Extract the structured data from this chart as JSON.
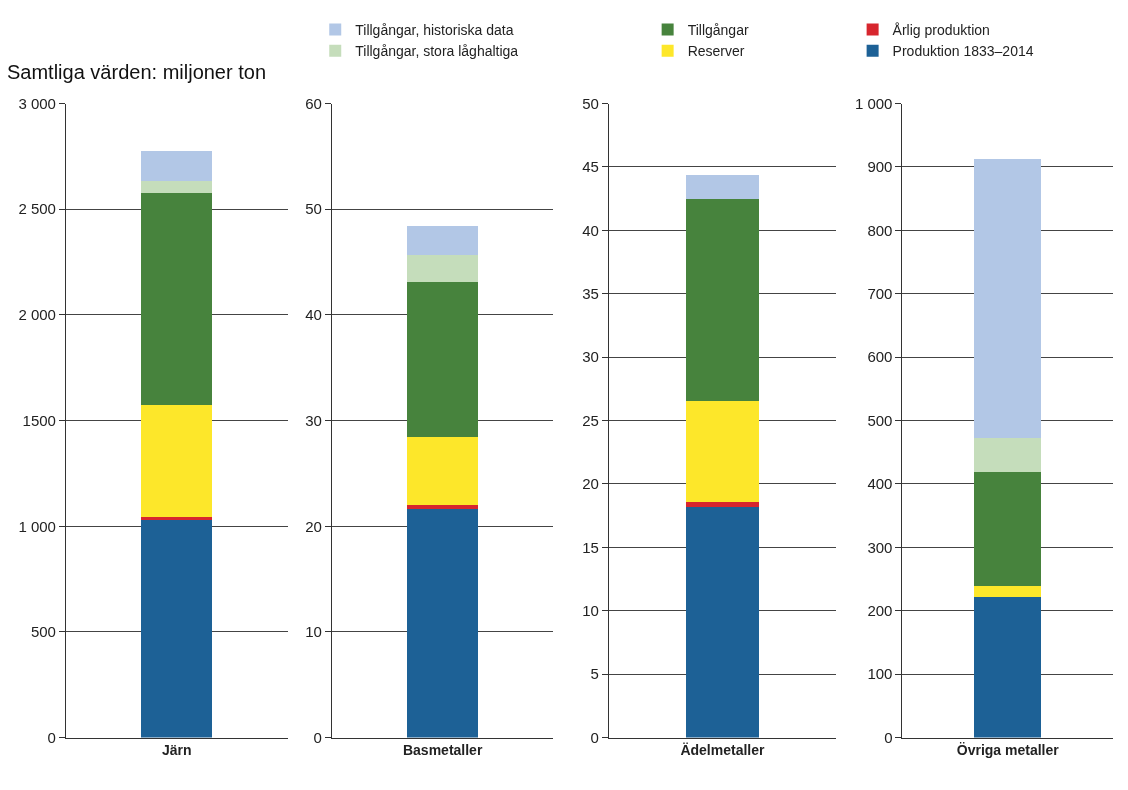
{
  "chart_data": [
    {
      "type": "bar",
      "title": "Samtliga värden: miljoner ton",
      "stacked": true,
      "legend": "top",
      "grid": "y",
      "categories": [
        "Järn"
      ],
      "ylim": [
        0,
        3000
      ],
      "yticks": [
        0,
        500,
        {
          "value": 1000,
          "label": "1 000"
        },
        1500,
        {
          "value": 2000,
          "label": "2 000"
        },
        {
          "value": 2500,
          "label": "2 500"
        },
        {
          "value": 3000,
          "label": "3 000"
        }
      ],
      "series": [
        {
          "name": "Produktion 1833–2014",
          "color": "#1d6196",
          "values": [
            1030
          ]
        },
        {
          "name": "Årlig produktion",
          "color": "#d7262e",
          "values": [
            17
          ]
        },
        {
          "name": "Reserver",
          "color": "#fde72a",
          "values": [
            528
          ]
        },
        {
          "name": "Tillgångar",
          "color": "#47833d",
          "values": [
            1006
          ]
        },
        {
          "name": "Tillgångar, stora låghaltiga",
          "color": "#c5ddbb",
          "values": [
            57
          ]
        },
        {
          "name": "Tillgångar, historiska data",
          "color": "#b2c7e6",
          "values": [
            140
          ]
        }
      ]
    },
    {
      "type": "bar",
      "stacked": true,
      "grid": "y",
      "categories": [
        "Basmetaller"
      ],
      "ylim": [
        0,
        60
      ],
      "yticks": [
        0,
        10,
        20,
        30,
        40,
        50,
        60
      ],
      "series": [
        {
          "color": "#1d6196",
          "values": [
            21.7
          ]
        },
        {
          "color": "#d7262e",
          "values": [
            0.4
          ]
        },
        {
          "color": "#fde72a",
          "values": [
            6.4
          ]
        },
        {
          "color": "#47833d",
          "values": [
            14.7
          ]
        },
        {
          "color": "#c5ddbb",
          "values": [
            2.5
          ]
        },
        {
          "color": "#b2c7e6",
          "values": [
            2.8
          ]
        }
      ]
    },
    {
      "type": "bar",
      "stacked": true,
      "grid": "y",
      "categories": [
        "Ädelmetaller"
      ],
      "ylim": [
        0,
        50
      ],
      "yticks": [
        0,
        5,
        10,
        15,
        20,
        25,
        30,
        35,
        40,
        45,
        50
      ],
      "series": [
        {
          "color": "#1d6196",
          "values": [
            18.2
          ]
        },
        {
          "color": "#d7262e",
          "values": [
            0.4
          ]
        },
        {
          "color": "#fde72a",
          "values": [
            8.0
          ]
        },
        {
          "color": "#47833d",
          "values": [
            15.9
          ]
        },
        {
          "color": "#c5ddbb",
          "values": [
            null
          ]
        },
        {
          "color": "#b2c7e6",
          "values": [
            1.9
          ]
        }
      ]
    },
    {
      "type": "bar",
      "stacked": true,
      "grid": "y",
      "categories": [
        "Övriga metaller"
      ],
      "ylim": [
        0,
        1000
      ],
      "yticks": [
        0,
        100,
        200,
        300,
        400,
        500,
        600,
        700,
        800,
        900,
        {
          "value": 1000,
          "label": "1 000"
        }
      ],
      "series": [
        {
          "color": "#1d6196",
          "values": [
            222
          ]
        },
        {
          "color": "#d7262e",
          "values": [
            null
          ]
        },
        {
          "color": "#fde72a",
          "values": [
            18
          ]
        },
        {
          "color": "#47833d",
          "values": [
            180
          ]
        },
        {
          "color": "#c5ddbb",
          "values": [
            54
          ]
        },
        {
          "color": "#b2c7e6",
          "values": [
            439
          ]
        }
      ]
    }
  ]
}
